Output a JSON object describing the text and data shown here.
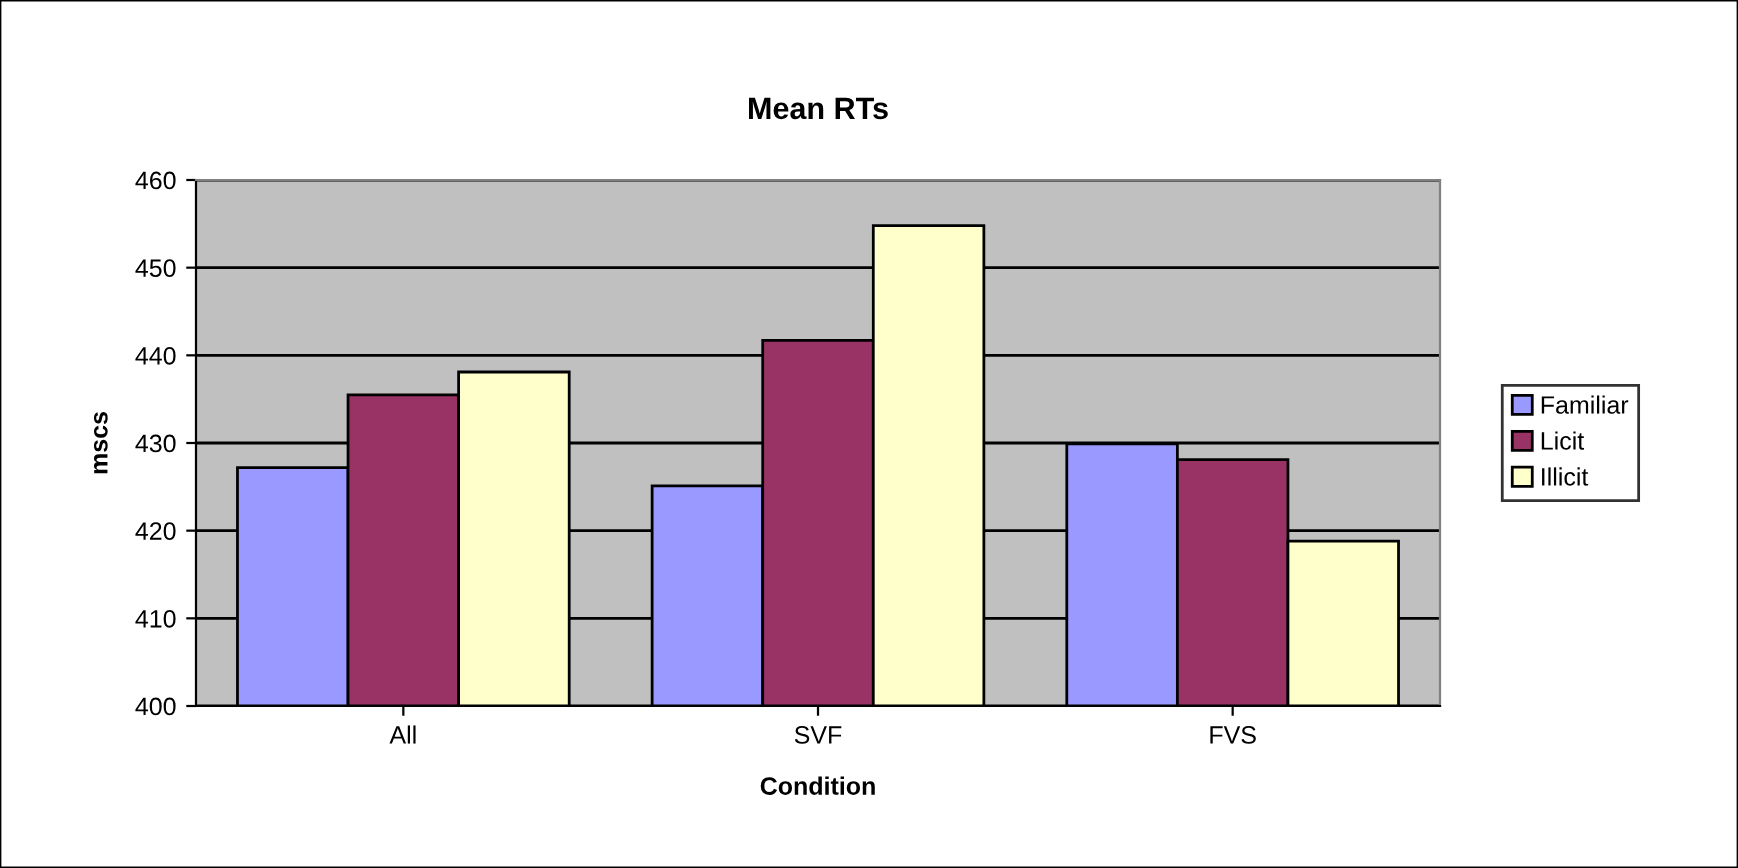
{
  "chart_data": {
    "type": "bar",
    "title": "Mean RTs",
    "xlabel": "Condition",
    "ylabel": "mscs",
    "categories": [
      "All",
      "SVF",
      "FVS"
    ],
    "series": [
      {
        "name": "Familiar",
        "color": "#9999ff",
        "values": [
          427.2,
          425.1,
          429.9
        ]
      },
      {
        "name": "Licit",
        "color": "#993366",
        "values": [
          435.5,
          441.7,
          428.1
        ]
      },
      {
        "name": "Illicit",
        "color": "#ffffcc",
        "values": [
          438.1,
          454.8,
          418.8
        ]
      }
    ],
    "ylim": [
      400,
      460
    ],
    "yticks": [
      400,
      410,
      420,
      430,
      440,
      450,
      460
    ],
    "grid": "y",
    "legend": "right"
  }
}
